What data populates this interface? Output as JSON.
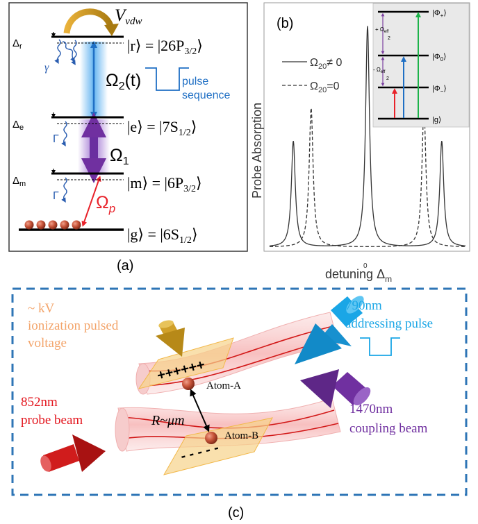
{
  "panel_a": {
    "label": "(a)",
    "interaction": "V",
    "interaction_sub": "vdw",
    "gamma": "γ",
    "Gamma": "Γ",
    "omega2": "Ω",
    "omega2_sub": "2",
    "omega2_arg": "(t)",
    "omega1": "Ω",
    "omega1_sub": "1",
    "omegap": "Ω",
    "omegap_sub": "p",
    "pulse_line1": "pulse",
    "pulse_line2": "sequence",
    "levels": [
      {
        "detuning": "Δ",
        "detuning_sub": "r",
        "ket": "|r⟩ = |26P",
        "ket_sub": "3/2",
        "ket_end": "⟩"
      },
      {
        "detuning": "Δ",
        "detuning_sub": "e",
        "ket": "|e⟩ = |7S",
        "ket_sub": "1/2",
        "ket_end": "⟩"
      },
      {
        "detuning": "Δ",
        "detuning_sub": "m",
        "ket": "|m⟩ = |6P",
        "ket_sub": "3/2",
        "ket_end": "⟩"
      },
      {
        "detuning": "",
        "detuning_sub": "",
        "ket": "|g⟩ = |6S",
        "ket_sub": "1/2",
        "ket_end": "⟩"
      }
    ]
  },
  "panel_b": {
    "label": "(b)",
    "ylabel": "Probe Absorption",
    "xlabel_main": "detuning Δ",
    "xlabel_sub": "m",
    "x_tick": "0",
    "legend": [
      {
        "text": "Ω",
        "sub": "20",
        "rest": "≠ 0",
        "style": "solid"
      },
      {
        "text": "Ω",
        "sub": "20",
        "rest": "=0",
        "style": "dashed"
      }
    ],
    "inset": {
      "states": [
        {
          "name": "|Φ",
          "sub": "+",
          "end": "⟩"
        },
        {
          "name": "|Φ",
          "sub": "0",
          "end": "⟩"
        },
        {
          "name": "|Φ",
          "sub": "−",
          "end": "⟩"
        },
        {
          "name": "|g⟩",
          "sub": "",
          "end": ""
        }
      ],
      "gap_upper": "+ Ω",
      "gap_upper_sub": "eff",
      "gap_lower": "- Ω",
      "gap_lower_sub": "eff",
      "gap_den": "2",
      "arrow_colors": [
        "#e8222a",
        "#1f6fc4",
        "#1cb34a"
      ],
      "gap_color": "#7b3fa0"
    }
  },
  "chart_data": {
    "type": "line",
    "title": "",
    "xlabel": "detuning Δm",
    "ylabel": "Probe Absorption",
    "x_ticks": [
      "0"
    ],
    "grid": false,
    "legend_position": "top-left",
    "series": [
      {
        "name": "Ω20≠ 0",
        "style": "solid",
        "peaks": [
          {
            "x": -1.0,
            "height": 0.48
          },
          {
            "x": 0.0,
            "height": 1.0
          },
          {
            "x": 1.0,
            "height": 0.48
          }
        ],
        "width": 0.032
      },
      {
        "name": "Ω20=0",
        "style": "dashed",
        "peaks": [
          {
            "x": -0.76,
            "height": 0.63
          },
          {
            "x": 0.76,
            "height": 0.63
          }
        ],
        "width": 0.032
      }
    ],
    "x_range": [
      -1.32,
      1.32
    ],
    "y_range": [
      0,
      1.05
    ]
  },
  "panel_c": {
    "label": "(c)",
    "ion_line1": "~ kV",
    "ion_line2": "ionization pulsed",
    "ion_line3": "voltage",
    "addr_line1": "790nm",
    "addr_line2": "addressing pulse",
    "probe_line1": "852nm",
    "probe_line2": "probe beam",
    "coupling_line1": "1470nm",
    "coupling_line2": "coupling beam",
    "plus": "++++++",
    "minus": "- - - - -",
    "atom_a": "Atom-A",
    "atom_b": "Atom-B",
    "distance": "R~μm",
    "colors": {
      "orange": "#f3a46a",
      "blue": "#1aa6e6",
      "red": "#e3141c",
      "purple": "#7030a0"
    }
  }
}
